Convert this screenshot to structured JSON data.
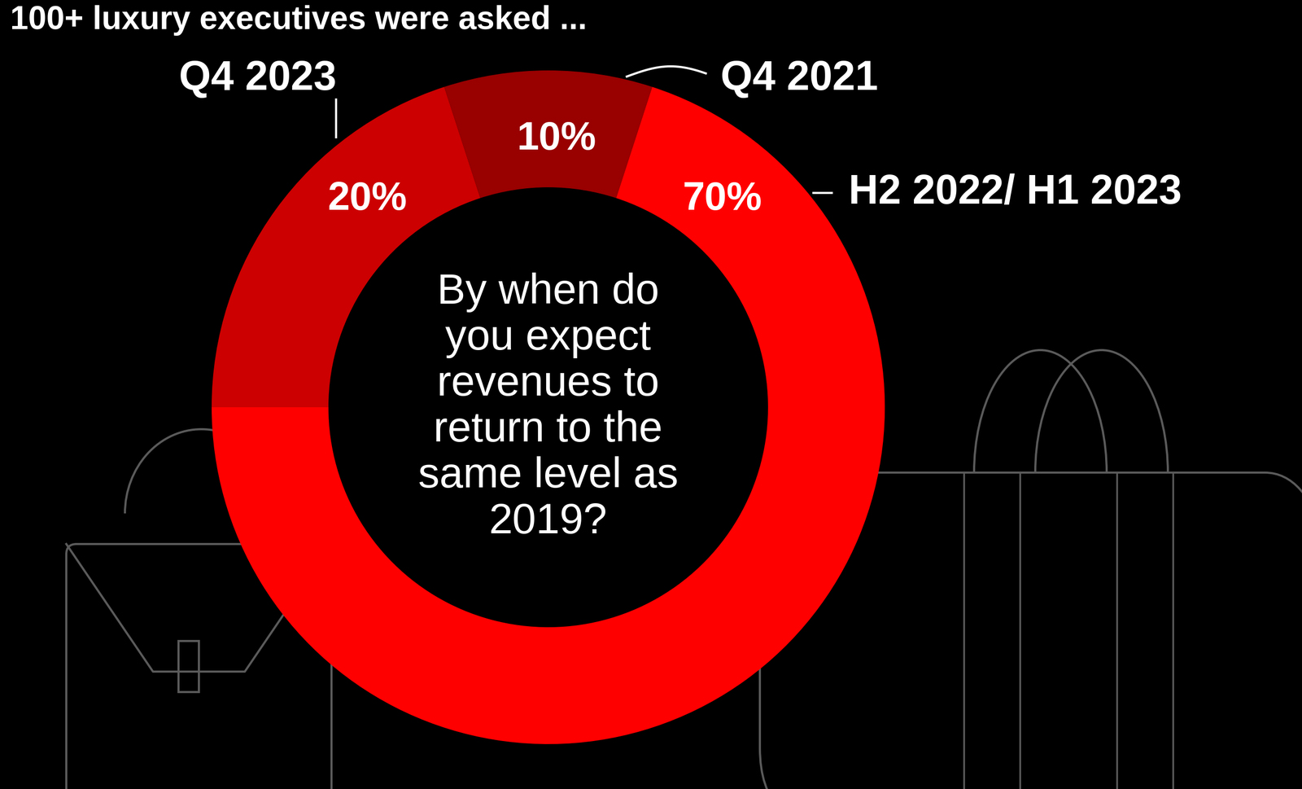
{
  "chart_data": {
    "type": "pie",
    "title": "100+ luxury executives were asked ...",
    "annotation": "By when do you expect revenues to return to the same level as 2019?",
    "categories": [
      "Q4 2021",
      "H2 2022/ H1 2023",
      "Q4 2023"
    ],
    "values": [
      10,
      70,
      20
    ],
    "value_labels": [
      "10%",
      "70%",
      "20%"
    ],
    "colors": [
      "#990000",
      "#ff0000",
      "#cc0000"
    ],
    "data_labels": true
  }
}
